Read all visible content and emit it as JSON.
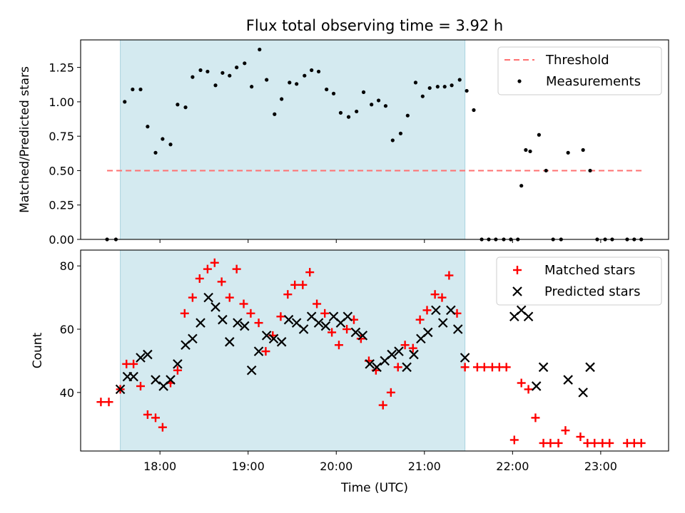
{
  "chart_data": [
    {
      "type": "scatter",
      "title": "Flux total observing time = 3.92 h",
      "xlabel": "",
      "ylabel": "Matched/Predicted stars",
      "xlim": [
        17.1,
        23.77
      ],
      "ylim": [
        0,
        1.45
      ],
      "yticks": [
        0,
        0.25,
        0.5,
        0.75,
        1.0,
        1.25
      ],
      "ytick_labels": [
        "0.00",
        "0.25",
        "0.50",
        "0.75",
        "1.00",
        "1.25"
      ],
      "xticks": [
        18,
        19,
        20,
        21,
        22,
        23
      ],
      "observing_window": {
        "start": 17.55,
        "end": 21.46,
        "color": "#d4eaf0"
      },
      "threshold": {
        "name": "Threshold",
        "y": 0.5,
        "x_start": 17.4,
        "x_end": 23.48,
        "color": "#ff7070"
      },
      "legend": {
        "position": "upper right",
        "entries": [
          "Threshold",
          "Measurements"
        ]
      },
      "series": [
        {
          "name": "Measurements",
          "color": "#000000",
          "x": [
            17.4,
            17.5,
            17.6,
            17.69,
            17.78,
            17.86,
            17.95,
            18.03,
            18.12,
            18.2,
            18.29,
            18.37,
            18.46,
            18.54,
            18.63,
            18.71,
            18.79,
            18.87,
            18.96,
            19.04,
            19.13,
            19.21,
            19.3,
            19.38,
            19.47,
            19.55,
            19.64,
            19.72,
            19.8,
            19.89,
            19.97,
            20.05,
            20.14,
            20.23,
            20.31,
            20.4,
            20.48,
            20.56,
            20.64,
            20.73,
            20.81,
            20.9,
            20.98,
            21.06,
            21.15,
            21.23,
            21.31,
            21.4,
            21.48,
            21.56,
            21.65,
            21.73,
            21.81,
            21.9,
            21.98,
            22.06,
            22.1,
            22.15,
            22.2,
            22.3,
            22.38,
            22.46,
            22.55,
            22.63,
            22.8,
            22.88,
            22.96,
            23.05,
            23.13,
            23.3,
            23.38,
            23.46
          ],
          "y": [
            0,
            0,
            1.0,
            1.09,
            1.09,
            0.82,
            0.63,
            0.73,
            0.69,
            0.98,
            0.96,
            1.18,
            1.23,
            1.22,
            1.12,
            1.21,
            1.19,
            1.25,
            1.28,
            1.11,
            1.38,
            1.16,
            0.91,
            1.02,
            1.14,
            1.13,
            1.19,
            1.23,
            1.22,
            1.09,
            1.06,
            0.92,
            0.89,
            0.93,
            1.07,
            0.98,
            1.01,
            0.97,
            0.72,
            0.77,
            0.9,
            1.14,
            1.04,
            1.1,
            1.11,
            1.11,
            1.12,
            1.16,
            1.08,
            0.94,
            0,
            0,
            0,
            0,
            0,
            0,
            0.39,
            0.65,
            0.64,
            0.76,
            0.5,
            0,
            0,
            0.63,
            0.65,
            0.5,
            0,
            0,
            0,
            0,
            0,
            0
          ]
        }
      ]
    },
    {
      "type": "scatter",
      "title": "",
      "xlabel": "Time (UTC)",
      "ylabel": "Count",
      "xlim": [
        17.1,
        23.77
      ],
      "ylim": [
        21.5,
        85
      ],
      "yticks": [
        40,
        60,
        80
      ],
      "xticks": [
        18,
        19,
        20,
        21,
        22,
        23
      ],
      "xtick_labels": [
        "18:00",
        "19:00",
        "20:00",
        "21:00",
        "22:00",
        "23:00"
      ],
      "observing_window": {
        "start": 17.55,
        "end": 21.46,
        "color": "#d4eaf0"
      },
      "legend": {
        "position": "upper right",
        "entries": [
          "Matched stars",
          "Predicted stars"
        ]
      },
      "series": [
        {
          "name": "Matched stars",
          "marker": "+",
          "color": "#ff0000",
          "x": [
            17.33,
            17.42,
            17.55,
            17.62,
            17.7,
            17.78,
            17.86,
            17.95,
            18.03,
            18.12,
            18.2,
            18.28,
            18.37,
            18.45,
            18.54,
            18.62,
            18.7,
            18.79,
            18.87,
            18.95,
            19.03,
            19.12,
            19.2,
            19.28,
            19.37,
            19.45,
            19.53,
            19.62,
            19.7,
            19.78,
            19.87,
            19.95,
            20.03,
            20.12,
            20.2,
            20.28,
            20.37,
            20.45,
            20.53,
            20.62,
            20.7,
            20.78,
            20.87,
            20.95,
            21.03,
            21.12,
            21.2,
            21.28,
            21.37,
            21.46,
            21.6,
            21.68,
            21.77,
            21.85,
            21.93,
            22.02,
            22.1,
            22.18,
            22.26,
            22.35,
            22.43,
            22.52,
            22.6,
            22.77,
            22.85,
            22.93,
            23.02,
            23.1,
            23.3,
            23.38,
            23.46
          ],
          "y": [
            37,
            37,
            41,
            49,
            49,
            42,
            33,
            32,
            29,
            43,
            47,
            65,
            70,
            76,
            79,
            81,
            75,
            70,
            79,
            68,
            65,
            62,
            53,
            58,
            64,
            71,
            74,
            74,
            78,
            68,
            65,
            59,
            55,
            60,
            63,
            57,
            50,
            47,
            36,
            40,
            48,
            55,
            54,
            63,
            66,
            71,
            70,
            77,
            65,
            48,
            48,
            48,
            48,
            48,
            48,
            25,
            43,
            41,
            32,
            24,
            24,
            24,
            28,
            26,
            24,
            24,
            24,
            24,
            24,
            24,
            24
          ]
        },
        {
          "name": "Predicted stars",
          "marker": "x",
          "color": "#000000",
          "x": [
            17.55,
            17.63,
            17.7,
            17.78,
            17.86,
            17.95,
            18.04,
            18.12,
            18.2,
            18.29,
            18.37,
            18.46,
            18.55,
            18.63,
            18.71,
            18.79,
            18.88,
            18.96,
            19.04,
            19.12,
            19.21,
            19.29,
            19.38,
            19.46,
            19.55,
            19.63,
            19.72,
            19.8,
            19.88,
            19.97,
            20.05,
            20.13,
            20.22,
            20.3,
            20.38,
            20.46,
            20.55,
            20.63,
            20.71,
            20.8,
            20.88,
            20.96,
            21.04,
            21.13,
            21.21,
            21.3,
            21.38,
            21.46,
            22.02,
            22.1,
            22.18,
            22.27,
            22.35,
            22.63,
            22.8,
            22.88
          ],
          "y": [
            41,
            45,
            45,
            51,
            52,
            44,
            42,
            44,
            49,
            55,
            57,
            62,
            70,
            67,
            63,
            56,
            62,
            61,
            47,
            53,
            58,
            57,
            56,
            63,
            62,
            60,
            64,
            62,
            61,
            64,
            62,
            64,
            59,
            58,
            49,
            48,
            50,
            52,
            53,
            48,
            52,
            57,
            59,
            66,
            62,
            66,
            60,
            51,
            64,
            66,
            64,
            42,
            48,
            44,
            40,
            48
          ]
        }
      ]
    }
  ]
}
